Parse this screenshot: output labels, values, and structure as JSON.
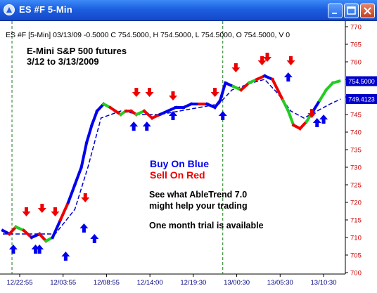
{
  "window": {
    "title": "ES #F 5-Min",
    "buttons": [
      "minimize",
      "maximize",
      "close"
    ]
  },
  "info_line": "ES #F [5-Min] 03/13/09 -0.5000 C 754.5000, H 754.5000, L 754.5000, O 754.5000, V 0",
  "chart_title_line1": "E-Mini S&P 500 futures",
  "chart_title_line2": "3/12 to 3/13/2009",
  "annotations": {
    "buy": "Buy On Blue",
    "sell": "Sell On Red",
    "promo1": "See what AbleTrend 7.0",
    "promo2": "might help your trading",
    "promo3": "One month trial is available"
  },
  "colors": {
    "buy": "#0000ee",
    "sell": "#ee0000",
    "neutral": "#22cc22",
    "axis_text": "#cc0000",
    "time_text": "#000080",
    "title_bar": "#1c5fe0"
  },
  "price_tags": [
    "754.5000",
    "749.4123"
  ],
  "chart_data": {
    "type": "line",
    "x_ticks": [
      "12/22:55",
      "12/03:55",
      "12/08:55",
      "12/14:00",
      "12/19:30",
      "13/00:30",
      "13/05:30",
      "13/10:30"
    ],
    "y_ticks": [
      770,
      765,
      760,
      755,
      750,
      745,
      740,
      735,
      730,
      725,
      720,
      715,
      710,
      705,
      700
    ],
    "ylim": [
      700,
      770
    ],
    "day_separators": [
      0.07,
      1.68
    ],
    "x_range": [
      0,
      2.6
    ],
    "series": [
      {
        "x": [
          0,
          0.05,
          0.1,
          0.16,
          0.22,
          0.28,
          0.33,
          0.38,
          0.44,
          0.5,
          0.55,
          0.6,
          0.64,
          0.68,
          0.72,
          0.77,
          0.82,
          0.86,
          0.9,
          0.94,
          0.98,
          1.02,
          1.08,
          1.14,
          1.2,
          1.26,
          1.32,
          1.38,
          1.44,
          1.5,
          1.56,
          1.62,
          1.66,
          1.7,
          1.76,
          1.82,
          1.88,
          1.94,
          2.0,
          2.06,
          2.1,
          2.14,
          2.18,
          2.22,
          2.27,
          2.32,
          2.37,
          2.42,
          2.47,
          2.52,
          2.57
        ],
        "y": [
          712,
          711,
          713,
          712,
          710,
          711,
          709,
          710,
          715,
          720,
          725,
          730,
          737,
          742,
          746,
          748,
          747,
          746,
          745,
          746,
          746,
          745,
          746,
          744,
          745,
          746,
          747,
          747,
          748,
          748,
          748,
          747,
          749,
          754,
          753,
          752,
          754,
          755,
          756,
          755,
          752,
          749,
          746,
          742,
          741,
          743,
          746,
          749,
          752,
          754,
          754.5
        ],
        "signal": [
          "buy",
          "sell",
          "neutral",
          "sell",
          "buy",
          "sell",
          "neutral",
          "buy",
          "sell",
          "buy",
          "buy",
          "buy",
          "buy",
          "buy",
          "buy",
          "neutral",
          "sell",
          "sell",
          "neutral",
          "sell",
          "sell",
          "neutral",
          "sell",
          "sell",
          "buy",
          "buy",
          "buy",
          "buy",
          "buy",
          "sell",
          "buy",
          "buy",
          "buy",
          "buy",
          "neutral",
          "sell",
          "neutral",
          "sell",
          "buy",
          "sell",
          "sell",
          "neutral",
          "neutral",
          "sell",
          "sell",
          "neutral",
          "buy",
          "neutral",
          "neutral",
          "neutral",
          "buy"
        ]
      }
    ],
    "moving_average": {
      "x": [
        0,
        0.2,
        0.4,
        0.55,
        0.65,
        0.75,
        0.9,
        1.05,
        1.2,
        1.35,
        1.5,
        1.65,
        1.75,
        1.9,
        2.0,
        2.1,
        2.2,
        2.3,
        2.4,
        2.5,
        2.58
      ],
      "y": [
        711,
        711,
        711,
        718,
        730,
        744,
        746,
        745,
        745,
        746,
        747,
        748,
        752,
        754,
        755,
        751,
        746,
        744,
        746,
        748,
        749.4
      ]
    },
    "buy_arrows": [
      [
        0.08,
        708
      ],
      [
        0.25,
        708
      ],
      [
        0.28,
        708
      ],
      [
        0.48,
        706
      ],
      [
        0.7,
        711
      ],
      [
        0.62,
        714
      ],
      [
        1.0,
        743
      ],
      [
        1.1,
        743
      ],
      [
        1.3,
        746
      ],
      [
        1.68,
        746
      ],
      [
        2.18,
        757
      ],
      [
        2.45,
        745
      ],
      [
        2.4,
        744
      ]
    ],
    "sell_arrows": [
      [
        0.18,
        716
      ],
      [
        0.3,
        717
      ],
      [
        0.4,
        716
      ],
      [
        0.63,
        720
      ],
      [
        1.02,
        750
      ],
      [
        1.12,
        750
      ],
      [
        1.3,
        749
      ],
      [
        1.62,
        750
      ],
      [
        1.78,
        757
      ],
      [
        1.98,
        759
      ],
      [
        2.02,
        760
      ],
      [
        2.2,
        759
      ],
      [
        2.36,
        744
      ]
    ],
    "ylabel": "",
    "xlabel": ""
  }
}
